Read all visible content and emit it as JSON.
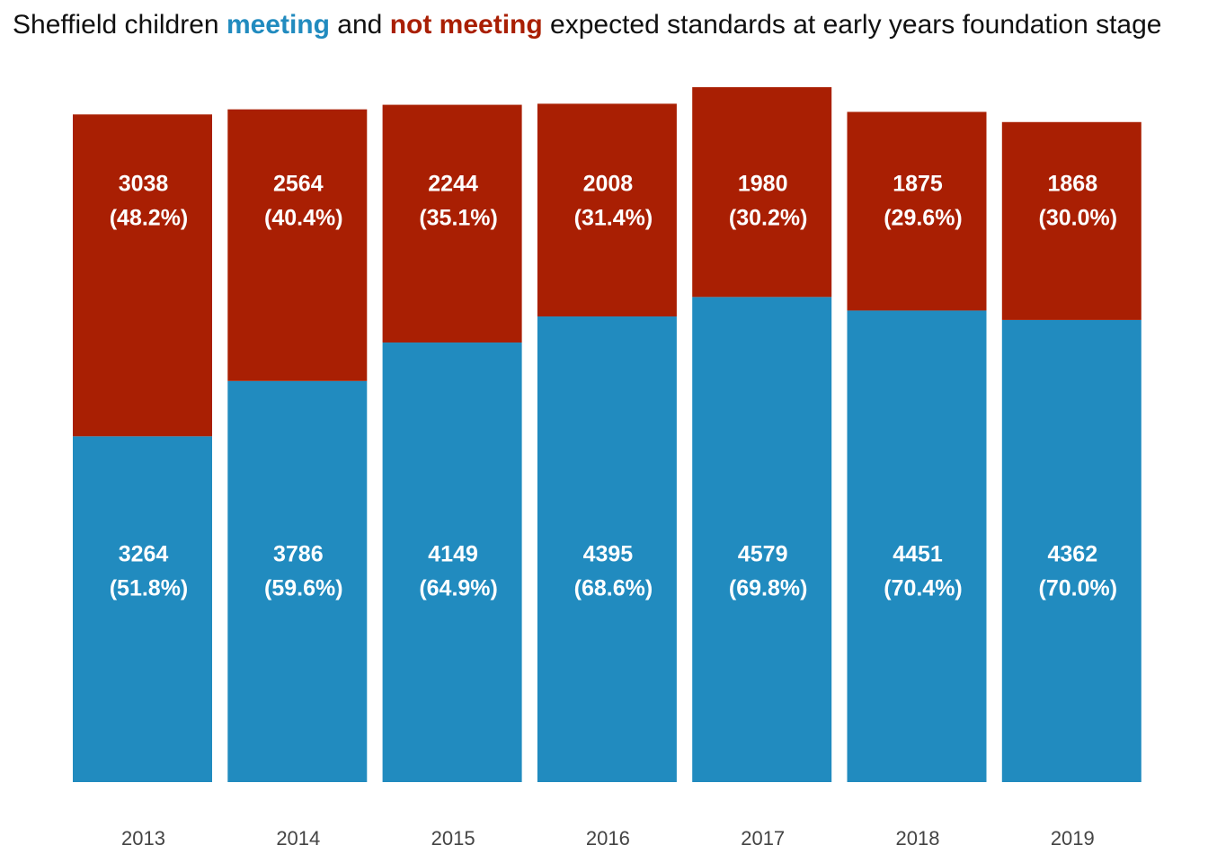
{
  "chart_data": {
    "type": "bar",
    "stacked": true,
    "title": {
      "prefix": "Sheffield children ",
      "meeting": "meeting",
      "middle": " and ",
      "not_meeting": "not meeting",
      "suffix": " expected standards at early years foundation stage"
    },
    "categories": [
      "2013",
      "2014",
      "2015",
      "2016",
      "2017",
      "2018",
      "2019"
    ],
    "series": [
      {
        "name": "meeting",
        "color": "#218bbf",
        "values": [
          3264,
          3786,
          4149,
          4395,
          4579,
          4451,
          4362
        ],
        "percent_labels": [
          "(51.8%)",
          "(59.6%)",
          "(64.9%)",
          "(68.6%)",
          "(69.8%)",
          "(70.4%)",
          "(70.0%)"
        ]
      },
      {
        "name": "not meeting",
        "color": "#a91f03",
        "values": [
          3038,
          2564,
          2244,
          2008,
          1980,
          1875,
          1868
        ],
        "percent_labels": [
          "(48.2%)",
          "(40.4%)",
          "(35.1%)",
          "(31.4%)",
          "(30.2%)",
          "(29.6%)",
          "(30.0%)"
        ]
      }
    ],
    "ylim": [
      0,
      6559
    ],
    "grid": false,
    "legend": "in title",
    "xlabel": "",
    "ylabel": ""
  }
}
